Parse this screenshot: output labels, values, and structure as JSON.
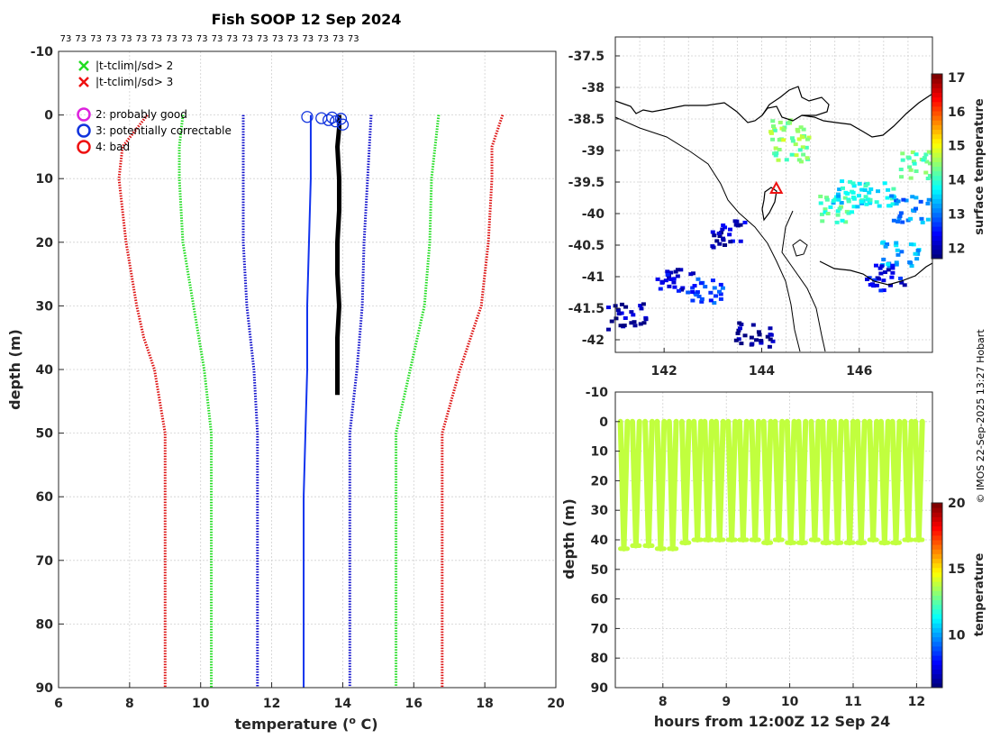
{
  "credit": "© IMOS 22-Sep-2025 13:27 Hobart",
  "chart_data": [
    {
      "type": "line",
      "name": "temperature-profile",
      "title": "Fish SOOP 12 Sep 2024",
      "xlabel": "temperature (",
      "xlabel_sup": "o",
      "xlabel_end": " C)",
      "ylabel": "depth (m)",
      "xlim": [
        6,
        20
      ],
      "ylim": [
        -10,
        90
      ],
      "xticks": [
        6,
        8,
        10,
        12,
        14,
        16,
        18,
        20
      ],
      "yticks": [
        -10,
        0,
        10,
        20,
        30,
        40,
        50,
        60,
        70,
        80,
        90
      ],
      "top_labels": [
        "73",
        "73",
        "73",
        "73",
        "73",
        "73",
        "73",
        "73",
        "73",
        "73",
        "73",
        "73",
        "73",
        "73",
        "73",
        "73",
        "73",
        "73",
        "73",
        "73"
      ],
      "legend": [
        {
          "label": "|t-tclim|/sd> 2",
          "marker": "x",
          "color": "#22dd22"
        },
        {
          "label": "|t-tclim|/sd> 3",
          "marker": "x",
          "color": "#ee1111"
        },
        {
          "label": "2: probably good",
          "marker": "o",
          "color": "#dd22dd"
        },
        {
          "label": "3: potentially correctable",
          "marker": "o",
          "color": "#1133dd"
        },
        {
          "label": "4: bad",
          "marker": "o",
          "color": "#ee1111"
        }
      ],
      "series": [
        {
          "name": "clim -3sd",
          "color": "#dd1111",
          "depth": [
            0,
            5,
            10,
            20,
            30,
            35,
            40,
            50,
            60,
            70,
            80,
            90
          ],
          "temp": [
            8.5,
            7.8,
            7.7,
            7.9,
            8.2,
            8.4,
            8.7,
            9.0,
            9.0,
            9.0,
            9.0,
            9.0
          ]
        },
        {
          "name": "clim -2sd",
          "color": "#22dd22",
          "depth": [
            0,
            5,
            10,
            20,
            30,
            35,
            40,
            50,
            60,
            70,
            80,
            90
          ],
          "temp": [
            9.5,
            9.4,
            9.4,
            9.5,
            9.8,
            9.95,
            10.1,
            10.3,
            10.3,
            10.3,
            10.3,
            10.3
          ]
        },
        {
          "name": "clim -1sd",
          "color": "#1111cc",
          "depth": [
            0,
            5,
            10,
            20,
            30,
            40,
            50,
            60,
            70,
            80,
            90
          ],
          "temp": [
            11.2,
            11.2,
            11.2,
            11.2,
            11.3,
            11.5,
            11.6,
            11.6,
            11.6,
            11.6,
            11.6
          ]
        },
        {
          "name": "clim +1sd",
          "color": "#1111cc",
          "depth": [
            0,
            5,
            10,
            20,
            30,
            40,
            50,
            60,
            70,
            80,
            90
          ],
          "temp": [
            14.8,
            14.75,
            14.7,
            14.6,
            14.55,
            14.4,
            14.2,
            14.2,
            14.2,
            14.2,
            14.2
          ]
        },
        {
          "name": "clim +2sd",
          "color": "#22dd22",
          "depth": [
            0,
            5,
            10,
            20,
            30,
            35,
            40,
            50,
            60,
            70,
            80,
            90
          ],
          "temp": [
            16.7,
            16.6,
            16.5,
            16.45,
            16.3,
            16.1,
            15.9,
            15.5,
            15.5,
            15.5,
            15.5,
            15.5
          ]
        },
        {
          "name": "clim +3sd",
          "color": "#dd1111",
          "depth": [
            0,
            5,
            10,
            20,
            30,
            35,
            40,
            50,
            60,
            70,
            80,
            90
          ],
          "temp": [
            18.5,
            18.2,
            18.2,
            18.1,
            17.9,
            17.6,
            17.3,
            16.8,
            16.8,
            16.8,
            16.8,
            16.8
          ]
        },
        {
          "name": "clim mean",
          "color": "#1133ee",
          "depth": [
            0,
            5,
            10,
            20,
            30,
            40,
            50,
            60,
            70,
            80,
            90
          ],
          "temp": [
            13.1,
            13.1,
            13.1,
            13.05,
            13.0,
            13.0,
            12.95,
            12.9,
            12.9,
            12.9,
            12.9
          ]
        },
        {
          "name": "observed",
          "color": "#000000",
          "depth": [
            0,
            2,
            5,
            10,
            15,
            20,
            25,
            30,
            35,
            40,
            42,
            44
          ],
          "temp": [
            13.9,
            13.9,
            13.85,
            13.9,
            13.9,
            13.85,
            13.85,
            13.9,
            13.85,
            13.85,
            13.85,
            13.85
          ]
        }
      ],
      "flag3_points": [
        {
          "temp": 13.0,
          "depth": 0.3
        },
        {
          "temp": 13.4,
          "depth": 0.5
        },
        {
          "temp": 13.6,
          "depth": 0.8
        },
        {
          "temp": 13.7,
          "depth": 0.4
        },
        {
          "temp": 13.8,
          "depth": 1.0
        },
        {
          "temp": 13.95,
          "depth": 0.6
        },
        {
          "temp": 14.0,
          "depth": 1.5
        }
      ]
    },
    {
      "type": "heatmap",
      "name": "surface-temperature-map",
      "xlim": [
        141,
        147.5
      ],
      "ylim": [
        -42.2,
        -37.2
      ],
      "xticks": [
        142,
        144,
        146
      ],
      "yticks": [
        -37.5,
        -38,
        -38.5,
        -39,
        -39.5,
        -40,
        -40.5,
        -41,
        -41.5,
        -42
      ],
      "colorbar": {
        "label": "surface temperature",
        "range": [
          11.7,
          17.1
        ],
        "ticks": [
          12,
          13,
          14,
          15,
          16,
          17
        ]
      },
      "marker": {
        "lon": 144.3,
        "lat": -39.6,
        "symbol": "triangle",
        "color": "#ee1111"
      },
      "patches": [
        {
          "lon": 144.55,
          "lat": -38.95,
          "temp": 14.4
        },
        {
          "lon": 144.5,
          "lat": -38.7,
          "temp": 14.5
        },
        {
          "lon": 145.5,
          "lat": -39.9,
          "temp": 14.1
        },
        {
          "lon": 145.8,
          "lat": -39.6,
          "temp": 13.6
        },
        {
          "lon": 146.3,
          "lat": -39.7,
          "temp": 13.8
        },
        {
          "lon": 147.0,
          "lat": -39.9,
          "temp": 13.1
        },
        {
          "lon": 147.2,
          "lat": -39.2,
          "temp": 14.3
        },
        {
          "lon": 146.8,
          "lat": -40.6,
          "temp": 13.3
        },
        {
          "lon": 146.5,
          "lat": -41.0,
          "temp": 12.3
        },
        {
          "lon": 143.3,
          "lat": -40.3,
          "temp": 12.1
        },
        {
          "lon": 142.8,
          "lat": -41.2,
          "temp": 12.7
        },
        {
          "lon": 141.2,
          "lat": -41.6,
          "temp": 11.9
        },
        {
          "lon": 143.8,
          "lat": -41.9,
          "temp": 11.8
        },
        {
          "lon": 142.2,
          "lat": -41.0,
          "temp": 12.2
        }
      ]
    },
    {
      "type": "scatter",
      "name": "depth-time-section",
      "xlabel": "hours from 12:00Z 12 Sep 24",
      "ylabel": "depth (m)",
      "xlim": [
        7.25,
        12.25
      ],
      "ylim": [
        -10,
        90
      ],
      "xticks": [
        8,
        9,
        10,
        11,
        12
      ],
      "yticks": [
        -10,
        0,
        10,
        20,
        30,
        40,
        50,
        60,
        70,
        80,
        90
      ],
      "colorbar": {
        "label": "temperature",
        "range": [
          6,
          20
        ],
        "ticks": [
          10,
          15,
          20
        ]
      },
      "point_temperature": 13.9,
      "cast_start_hours": [
        7.33,
        7.52,
        7.72,
        7.91,
        8.1,
        8.3,
        8.49,
        8.66,
        8.84,
        9.03,
        9.21,
        9.4,
        9.59,
        9.77,
        9.96,
        10.14,
        10.34,
        10.52,
        10.7,
        10.89,
        11.07,
        11.26,
        11.44,
        11.62,
        11.81,
        11.98
      ],
      "cast_max_depth": [
        43,
        42,
        42,
        43,
        43,
        41,
        40,
        40,
        40,
        40,
        40,
        40,
        41,
        40,
        41,
        41,
        40,
        41,
        41,
        41,
        41,
        40,
        41,
        41,
        40,
        40
      ]
    }
  ]
}
